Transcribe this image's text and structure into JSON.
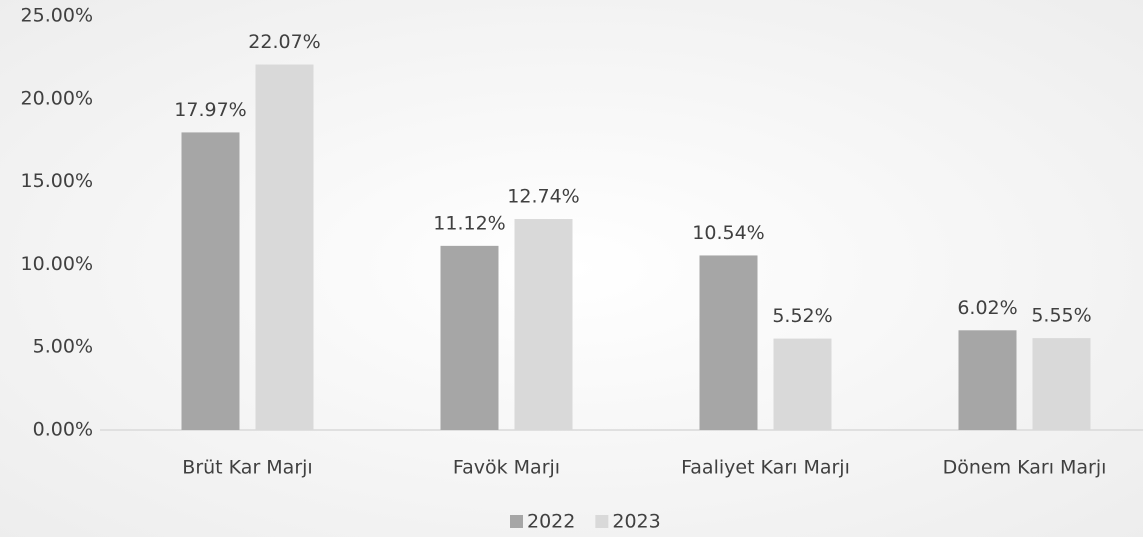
{
  "chart_data": {
    "type": "bar",
    "categories": [
      "Brüt Kar Marjı",
      "Favök Marjı",
      "Faaliyet Karı Marjı",
      "Dönem Karı Marjı"
    ],
    "series": [
      {
        "name": "2022",
        "color": "#a6a6a6",
        "values": [
          17.97,
          11.12,
          10.54,
          6.02
        ],
        "value_labels": [
          "17.97%",
          "11.12%",
          "10.54%",
          "6.02%"
        ]
      },
      {
        "name": "2023",
        "color": "#d9d9d9",
        "values": [
          22.07,
          12.74,
          5.52,
          5.55
        ],
        "value_labels": [
          "22.07%",
          "12.74%",
          "5.52%",
          "5.55%"
        ]
      }
    ],
    "ylim": [
      0,
      25
    ],
    "yticks": [
      {
        "value": 0,
        "label": "0.00%"
      },
      {
        "value": 5,
        "label": "5.00%"
      },
      {
        "value": 10,
        "label": "10.00%"
      },
      {
        "value": 15,
        "label": "15.00%"
      },
      {
        "value": 20,
        "label": "20.00%"
      },
      {
        "value": 25,
        "label": "25.00%"
      }
    ],
    "legend": "bottom"
  }
}
